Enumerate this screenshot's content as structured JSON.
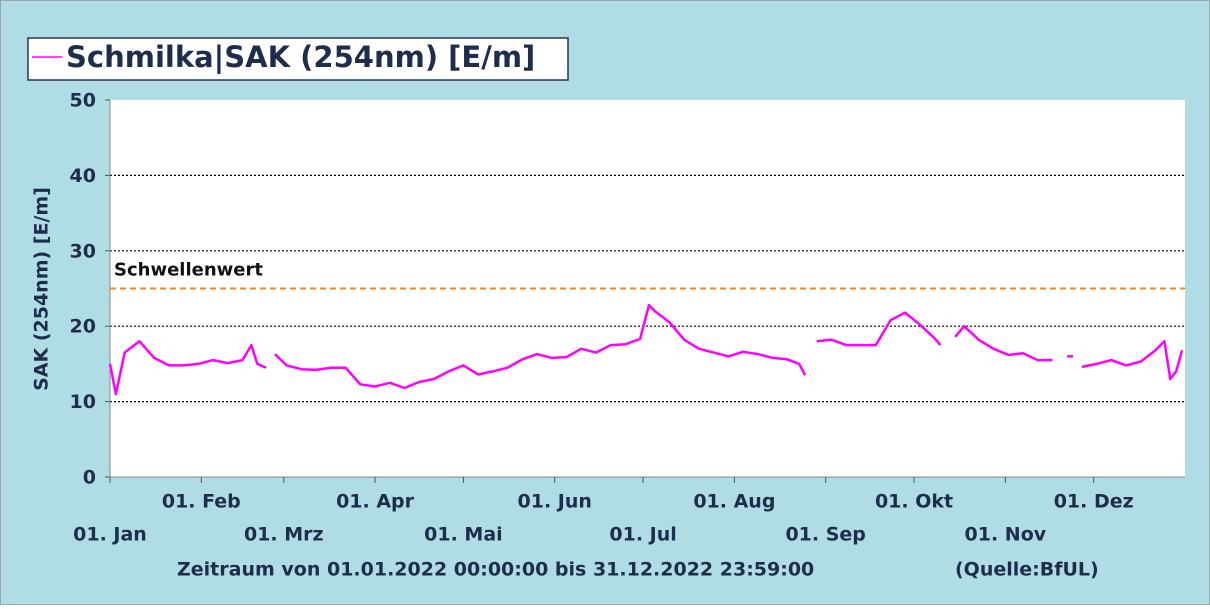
{
  "chart_data": {
    "type": "line",
    "title": "Schmilka|SAK (254nm) [E/m]",
    "ylabel": "SAK (254nm) [E/m]",
    "footer": "Zeitraum von 01.01.2022 00:00:00 bis 31.12.2022 23:59:00",
    "source": "(Quelle:BfUL)",
    "ylim": [
      0,
      50
    ],
    "yticks": [
      0,
      10,
      20,
      30,
      40,
      50
    ],
    "grid": true,
    "xlim": [
      "2022-01-01",
      "2022-12-31T23:59"
    ],
    "xticks": [
      {
        "value": "2022-01-01",
        "label": "01. Jan"
      },
      {
        "value": "2022-02-01",
        "label": "01. Feb"
      },
      {
        "value": "2022-03-01",
        "label": "01. Mrz"
      },
      {
        "value": "2022-04-01",
        "label": "01. Apr"
      },
      {
        "value": "2022-05-01",
        "label": "01. Mai"
      },
      {
        "value": "2022-06-01",
        "label": "01. Jun"
      },
      {
        "value": "2022-07-01",
        "label": "01. Jul"
      },
      {
        "value": "2022-08-01",
        "label": "01. Aug"
      },
      {
        "value": "2022-09-01",
        "label": "01. Sep"
      },
      {
        "value": "2022-10-01",
        "label": "01. Okt"
      },
      {
        "value": "2022-11-01",
        "label": "01. Nov"
      },
      {
        "value": "2022-12-01",
        "label": "01. Dez"
      }
    ],
    "threshold": {
      "label": "Schwellenwert",
      "value": 25,
      "color": "#f0891c"
    },
    "x": [
      "2022-01-01",
      "2022-01-03",
      "2022-01-06",
      "2022-01-11",
      "2022-01-16",
      "2022-01-21",
      "2022-01-26",
      "2022-01-31",
      "2022-02-05",
      "2022-02-10",
      "2022-02-15",
      "2022-02-18",
      "2022-02-20",
      "2022-02-23",
      "2022-02-25",
      "2022-02-26",
      "2022-03-02",
      "2022-03-07",
      "2022-03-12",
      "2022-03-17",
      "2022-03-22",
      "2022-03-27",
      "2022-04-01",
      "2022-04-06",
      "2022-04-11",
      "2022-04-16",
      "2022-04-21",
      "2022-04-26",
      "2022-05-01",
      "2022-05-06",
      "2022-05-11",
      "2022-05-16",
      "2022-05-21",
      "2022-05-26",
      "2022-05-31",
      "2022-06-05",
      "2022-06-10",
      "2022-06-15",
      "2022-06-20",
      "2022-06-25",
      "2022-06-30",
      "2022-07-03",
      "2022-07-05",
      "2022-07-10",
      "2022-07-15",
      "2022-07-20",
      "2022-07-25",
      "2022-07-30",
      "2022-08-04",
      "2022-08-09",
      "2022-08-14",
      "2022-08-19",
      "2022-08-23",
      "2022-08-25",
      "2022-08-27",
      "2022-08-29",
      "2022-09-03",
      "2022-09-08",
      "2022-09-13",
      "2022-09-18",
      "2022-09-23",
      "2022-09-28",
      "2022-10-03",
      "2022-10-08",
      "2022-10-10",
      "2022-10-12",
      "2022-10-15",
      "2022-10-18",
      "2022-10-23",
      "2022-10-28",
      "2022-11-02",
      "2022-11-07",
      "2022-11-12",
      "2022-11-17",
      "2022-11-20",
      "2022-11-22",
      "2022-11-24",
      "2022-11-25",
      "2022-11-27",
      "2022-12-02",
      "2022-12-07",
      "2022-12-12",
      "2022-12-17",
      "2022-12-22",
      "2022-12-25",
      "2022-12-27",
      "2022-12-29",
      "2022-12-31"
    ],
    "series": [
      {
        "name": "Schmilka|SAK (254nm) [E/m]",
        "color": "#ff00ff",
        "values": [
          15,
          11,
          16.5,
          18,
          15.8,
          14.8,
          14.8,
          15,
          15.5,
          15.1,
          15.5,
          17.5,
          15,
          14.5,
          null,
          16.3,
          14.8,
          14.3,
          14.2,
          14.5,
          14.5,
          12.3,
          12,
          12.5,
          11.8,
          12.6,
          13,
          14,
          14.8,
          13.6,
          14,
          14.5,
          15.6,
          16.3,
          15.8,
          15.9,
          17,
          16.5,
          17.5,
          17.6,
          18.3,
          22.8,
          22,
          20.5,
          18.2,
          17,
          16.5,
          16,
          16.6,
          16.3,
          15.8,
          15.6,
          15,
          13.5,
          null,
          18,
          18.2,
          17.5,
          17.5,
          17.5,
          20.8,
          21.8,
          20.2,
          18.4,
          17.5,
          null,
          18.6,
          20,
          18.2,
          17,
          16.2,
          16.4,
          15.5,
          15.5,
          null,
          16,
          16,
          null,
          14.6,
          15,
          15.5,
          14.8,
          15.3,
          16.8,
          18,
          13,
          14,
          16.8
        ]
      }
    ]
  }
}
